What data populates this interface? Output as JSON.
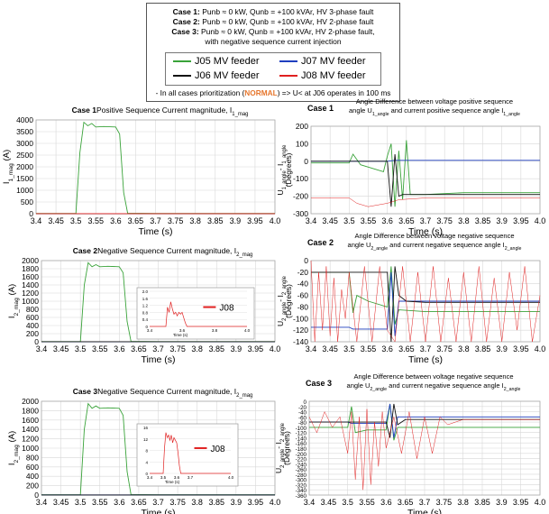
{
  "legend": {
    "cases": [
      {
        "label": "Case 1:",
        "text": " Punb ≈ 0 kW, Qunb = +100 kVAr, HV 3-phase fault"
      },
      {
        "label": "Case 2:",
        "text": " Punb ≈ 0 kW, Qunb = +100 kVAr, HV 2-phase fault"
      },
      {
        "label": "Case 3:",
        "text": " Punb ≈ 0 kW, Qunb = +100 kVAr, HV 2-phase fault,"
      }
    ],
    "case3_cont": "with negative sequence current injection",
    "feeders": [
      {
        "name": "J05 MV feeder",
        "color": "#3aa33a"
      },
      {
        "name": "J07 MV feeder",
        "color": "#1f3fbf"
      },
      {
        "name": "J06 MV feeder",
        "color": "#111111"
      },
      {
        "name": "J08 MV feeder",
        "color": "#e02020"
      }
    ],
    "prio_pre": "- In all cases prioritization (",
    "prio_hl": "NORMAL",
    "prio_post": ") => U< at J06 operates in 100 ms"
  },
  "chart_data": [
    {
      "id": "c1l",
      "type": "line",
      "case_label": "Case 1",
      "title": "Positive Sequence Current magnitude, I",
      "title_sub": "1_mag",
      "ylabel": "I",
      "ylabel_sub": "1_mag",
      "ylabel_end": " (A)",
      "xlabel": "Time (s)",
      "xlim": [
        3.4,
        4.0
      ],
      "ylim": [
        0,
        4000
      ],
      "yticks": [
        "0",
        "500",
        "1000",
        "1500",
        "2000",
        "2500",
        "3000",
        "3500",
        "4000"
      ],
      "xticks": [
        "3.4",
        "3.45",
        "3.5",
        "3.55",
        "3.6",
        "3.65",
        "3.7",
        "3.75",
        "3.8",
        "3.85",
        "3.9",
        "3.95",
        "4.0"
      ],
      "series": [
        {
          "color": "#3aa33a",
          "x": [
            3.4,
            3.5,
            3.51,
            3.52,
            3.53,
            3.54,
            3.55,
            3.57,
            3.6,
            3.61,
            3.62,
            3.63,
            3.7,
            4.0
          ],
          "y": [
            10,
            10,
            2600,
            3900,
            3750,
            3850,
            3700,
            3720,
            3700,
            3400,
            900,
            20,
            10,
            10
          ]
        },
        {
          "color": "#1f3fbf",
          "x": [
            3.4,
            3.5,
            3.6,
            4.0
          ],
          "y": [
            5,
            5,
            5,
            5
          ]
        },
        {
          "color": "#111111",
          "x": [
            3.4,
            4.0
          ],
          "y": [
            3,
            3
          ]
        },
        {
          "color": "#e02020",
          "x": [
            3.4,
            4.0
          ],
          "y": [
            2,
            2
          ]
        }
      ]
    },
    {
      "id": "c1r",
      "type": "line",
      "case_label": "Case 1",
      "title_line1": "Angle Difference between voltage positive sequence",
      "title_line2a": "angle U",
      "title_line2a_sub": "1_angle",
      "title_line2b": " and current positive sequence angle I",
      "title_line2b_sub": "1_angle",
      "ylabel": "U",
      "ylabel_sub": "1_angle",
      "ylabel_mid": "- I",
      "ylabel_sub2": "1_angle",
      "ylabel_unit": "(Degrees)",
      "xlabel": "Time (s)",
      "xlim": [
        3.4,
        4.0
      ],
      "ylim": [
        -300,
        200
      ],
      "yticks": [
        "-300",
        "-200",
        "-100",
        "0",
        "100",
        "200"
      ],
      "xticks": [
        "3.4",
        "3.45",
        "3.5",
        "3.55",
        "3.6",
        "3.65",
        "3.7",
        "3.75",
        "3.8",
        "3.85",
        "3.9",
        "3.95",
        "4.0"
      ],
      "series": [
        {
          "color": "#3aa33a",
          "x": [
            3.4,
            3.5,
            3.51,
            3.53,
            3.56,
            3.59,
            3.6,
            3.61,
            3.62,
            3.63,
            3.64,
            3.65,
            3.66,
            3.7,
            3.8,
            4.0
          ],
          "y": [
            -10,
            -10,
            40,
            -20,
            -40,
            -60,
            30,
            100,
            -260,
            60,
            -220,
            120,
            -190,
            -190,
            -180,
            -180
          ]
        },
        {
          "color": "#1f3fbf",
          "x": [
            3.4,
            3.6,
            3.62,
            4.0
          ],
          "y": [
            0,
            0,
            5,
            5
          ]
        },
        {
          "color": "#111111",
          "x": [
            3.4,
            3.6,
            3.61,
            3.62,
            3.63,
            3.64,
            3.65,
            4.0
          ],
          "y": [
            0,
            0,
            -260,
            40,
            -200,
            -190,
            -190,
            -190
          ]
        },
        {
          "color": "#e02020",
          "x": [
            3.4,
            3.5,
            3.52,
            3.55,
            3.6,
            3.63,
            3.7,
            4.0
          ],
          "y": [
            -210,
            -210,
            -240,
            -260,
            -240,
            -220,
            -210,
            -210
          ]
        }
      ]
    },
    {
      "id": "c2l",
      "type": "line",
      "case_label": "Case 2",
      "title": "Negative Sequence Current magnitude, I",
      "title_sub": "2_mag",
      "ylabel": "I",
      "ylabel_sub": "2_mag",
      "ylabel_end": " (A)",
      "xlabel": "Time (s)",
      "xlim": [
        3.4,
        4.0
      ],
      "ylim": [
        0,
        2000
      ],
      "yticks": [
        "0",
        "200",
        "400",
        "600",
        "800",
        "1000",
        "1200",
        "1400",
        "1600",
        "1800",
        "2000"
      ],
      "xticks": [
        "3.4",
        "3.45",
        "3.5",
        "3.55",
        "3.6",
        "3.65",
        "3.7",
        "3.75",
        "3.8",
        "3.85",
        "3.9",
        "3.95",
        "4.0"
      ],
      "series": [
        {
          "color": "#3aa33a",
          "x": [
            3.4,
            3.5,
            3.51,
            3.52,
            3.53,
            3.54,
            3.55,
            3.57,
            3.6,
            3.61,
            3.62,
            3.63,
            3.7,
            4.0
          ],
          "y": [
            5,
            5,
            1400,
            1950,
            1850,
            1900,
            1850,
            1860,
            1850,
            1700,
            500,
            10,
            5,
            5
          ]
        },
        {
          "color": "#1f3fbf",
          "x": [
            3.4,
            4.0
          ],
          "y": [
            3,
            3
          ]
        },
        {
          "color": "#111111",
          "x": [
            3.4,
            4.0
          ],
          "y": [
            2,
            2
          ]
        }
      ],
      "inset": {
        "label": "J08",
        "color": "#e02020",
        "xlim": [
          3.4,
          4.0
        ],
        "ylim": [
          0,
          2.0
        ],
        "yticks": [
          "0",
          "0.4",
          "0.8",
          "1.2",
          "1.6",
          "2.0"
        ],
        "xticks": [
          "3.4",
          "3.6",
          "3.8",
          "4.0"
        ],
        "xlabel": "Time (s)",
        "x": [
          3.4,
          3.5,
          3.51,
          3.52,
          3.53,
          3.54,
          3.55,
          3.56,
          3.57,
          3.58,
          3.59,
          3.6,
          3.61,
          3.62,
          3.63,
          4.0
        ],
        "y": [
          0,
          0,
          1.1,
          0.8,
          1.4,
          1.0,
          0.7,
          0.8,
          0.6,
          0.8,
          0.7,
          0.8,
          0.5,
          0.2,
          0,
          0
        ]
      }
    },
    {
      "id": "c2r",
      "type": "line",
      "case_label": "Case 2",
      "title_line1": "Angle Difference between voltage negative sequence",
      "title_line2a": "angle U",
      "title_line2a_sub": "2_angle",
      "title_line2b": " and current negative sequence angle I",
      "title_line2b_sub": "2_angle",
      "ylabel": "U",
      "ylabel_sub": "2_angle",
      "ylabel_mid": "- I",
      "ylabel_sub2": "2_angle",
      "ylabel_unit": "(Degrees)",
      "xlabel": "Time (s)",
      "xlim": [
        3.4,
        4.0
      ],
      "ylim": [
        -140,
        0
      ],
      "yticks": [
        "-140",
        "-120",
        "-100",
        "-80",
        "-60",
        "-40",
        "-20",
        "0"
      ],
      "xticks": [
        "3.4",
        "3.45",
        "3.5",
        "3.55",
        "3.6",
        "3.65",
        "3.7",
        "3.75",
        "3.8",
        "3.85",
        "3.9",
        "3.95",
        "4.0"
      ],
      "series": [
        {
          "color": "#3aa33a",
          "x": [
            3.4,
            3.5,
            3.51,
            3.52,
            3.55,
            3.6,
            3.61,
            3.62,
            3.63,
            3.7,
            4.0
          ],
          "y": [
            -20,
            -20,
            -90,
            -60,
            -70,
            -80,
            -10,
            -110,
            -85,
            -88,
            -88
          ]
        },
        {
          "color": "#1f3fbf",
          "x": [
            3.4,
            3.5,
            3.51,
            3.6,
            3.61,
            3.62,
            3.63,
            4.0
          ],
          "y": [
            -115,
            -115,
            -118,
            -118,
            -20,
            -130,
            -70,
            -70
          ]
        },
        {
          "color": "#111111",
          "x": [
            3.4,
            3.5,
            3.51,
            3.6,
            3.61,
            3.62,
            3.63,
            3.65,
            3.7,
            4.0
          ],
          "y": [
            -20,
            -20,
            -20,
            -20,
            -140,
            -10,
            -60,
            -70,
            -72,
            -72
          ]
        },
        {
          "color": "#e02020",
          "x": [
            3.4,
            3.41,
            3.42,
            3.43,
            3.44,
            3.45,
            3.46,
            3.47,
            3.48,
            3.49,
            3.5,
            3.52,
            3.54,
            3.56,
            3.58,
            3.6,
            3.62,
            3.64,
            3.66,
            3.68,
            3.7,
            3.72,
            3.74,
            3.76,
            3.78,
            3.8,
            3.82,
            3.84,
            3.86,
            3.88,
            3.9,
            3.92,
            3.94,
            3.96,
            3.98,
            4.0
          ],
          "y": [
            0,
            -140,
            -20,
            -120,
            -10,
            -130,
            -30,
            -140,
            -50,
            -100,
            -20,
            -140,
            -10,
            -140,
            -10,
            -120,
            -140,
            -10,
            -140,
            -20,
            -140,
            -10,
            -140,
            -30,
            -140,
            -20,
            -140,
            -10,
            -140,
            -30,
            -140,
            -20,
            -120,
            -10,
            -140,
            -60
          ]
        }
      ]
    },
    {
      "id": "c3l",
      "type": "line",
      "case_label": "Case 3",
      "title": "Negative Sequence Current magnitude, I",
      "title_sub": "2_mag",
      "ylabel": "I",
      "ylabel_sub": "2_mag",
      "ylabel_end": " (A)",
      "xlabel": "Time (s)",
      "xlim": [
        3.4,
        4.0
      ],
      "ylim": [
        0,
        2000
      ],
      "yticks": [
        "0",
        "200",
        "400",
        "600",
        "800",
        "1000",
        "1200",
        "1400",
        "1600",
        "1800",
        "2000"
      ],
      "xticks": [
        "3.4",
        "3.45",
        "3.5",
        "3.55",
        "3.6",
        "3.65",
        "3.7",
        "3.75",
        "3.8",
        "3.85",
        "3.9",
        "3.95",
        "4.0"
      ],
      "series": [
        {
          "color": "#3aa33a",
          "x": [
            3.4,
            3.5,
            3.51,
            3.52,
            3.53,
            3.54,
            3.55,
            3.57,
            3.6,
            3.61,
            3.62,
            3.63,
            3.7,
            4.0
          ],
          "y": [
            5,
            5,
            1400,
            1950,
            1850,
            1900,
            1850,
            1860,
            1850,
            1700,
            500,
            10,
            5,
            5
          ]
        },
        {
          "color": "#1f3fbf",
          "x": [
            3.4,
            4.0
          ],
          "y": [
            3,
            3
          ]
        },
        {
          "color": "#111111",
          "x": [
            3.4,
            4.0
          ],
          "y": [
            2,
            2
          ]
        }
      ],
      "inset": {
        "label": "J08",
        "color": "#e02020",
        "xlim": [
          3.4,
          4.0
        ],
        "ylim": [
          0,
          18
        ],
        "yticks": [
          "0",
          "4",
          "8",
          "12",
          "16"
        ],
        "xticks": [
          "3.4",
          "3.5",
          "3.6",
          "3.7",
          "4.0"
        ],
        "xlabel": "Time (s)",
        "x": [
          3.4,
          3.5,
          3.51,
          3.52,
          3.53,
          3.54,
          3.55,
          3.56,
          3.57,
          3.58,
          3.59,
          3.6,
          3.61,
          3.62,
          3.63,
          4.0
        ],
        "y": [
          0,
          0,
          10,
          16,
          14,
          15,
          13,
          15,
          12,
          14,
          13,
          12,
          8,
          3,
          0,
          0
        ]
      }
    },
    {
      "id": "c3r",
      "type": "line",
      "case_label": "Case 3",
      "title_line1": "Angle Difference between voltage negative sequence",
      "title_line2a": "angle U",
      "title_line2a_sub": "2_angle",
      "title_line2b": " and current negative sequence angle I",
      "title_line2b_sub": "2_angle",
      "ylabel": "U",
      "ylabel_sub": "2_angle",
      "ylabel_mid": "- I",
      "ylabel_sub2": "2_angle",
      "ylabel_unit": "(Degrees)",
      "xlabel": "Time (s)",
      "xlim": [
        3.4,
        4.0
      ],
      "ylim": [
        -360,
        0
      ],
      "yticks": [
        "-360",
        "-340",
        "-320",
        "-300",
        "-280",
        "-260",
        "-240",
        "-220",
        "-200",
        "-180",
        "-160",
        "-140",
        "-120",
        "-100",
        "-80",
        "-60",
        "-40",
        "-20",
        "0"
      ],
      "xticks": [
        "3.4",
        "3.45",
        "3.5",
        "3.55",
        "3.6",
        "3.65",
        "3.7",
        "3.75",
        "3.8",
        "3.85",
        "3.9",
        "3.95",
        "4.0"
      ],
      "series": [
        {
          "color": "#3aa33a",
          "x": [
            3.4,
            3.5,
            3.51,
            3.52,
            3.55,
            3.6,
            3.61,
            3.62,
            3.63,
            3.7,
            4.0
          ],
          "y": [
            -100,
            -100,
            -20,
            -120,
            -110,
            -110,
            -10,
            -150,
            -100,
            -100,
            -100
          ]
        },
        {
          "color": "#1f3fbf",
          "x": [
            3.4,
            3.5,
            3.51,
            3.6,
            3.61,
            3.62,
            3.63,
            4.0
          ],
          "y": [
            -80,
            -80,
            -85,
            -85,
            -10,
            -140,
            -60,
            -60
          ]
        },
        {
          "color": "#111111",
          "x": [
            3.4,
            3.5,
            3.6,
            3.61,
            3.62,
            3.63,
            3.65,
            3.7,
            4.0
          ],
          "y": [
            -80,
            -80,
            -80,
            -140,
            -10,
            -90,
            -70,
            -70,
            -70
          ]
        },
        {
          "color": "#e02020",
          "x": [
            3.4,
            3.42,
            3.44,
            3.46,
            3.48,
            3.5,
            3.51,
            3.52,
            3.53,
            3.54,
            3.55,
            3.56,
            3.57,
            3.58,
            3.59,
            3.6,
            3.62,
            3.64,
            3.66,
            3.68,
            3.7,
            3.72,
            3.74,
            3.76,
            3.8,
            4.0
          ],
          "y": [
            -60,
            -120,
            -40,
            -100,
            -60,
            -200,
            -40,
            -300,
            -60,
            -340,
            -30,
            -320,
            -80,
            -250,
            -40,
            -180,
            -60,
            -200,
            -40,
            -220,
            -60,
            -200,
            -60,
            -90,
            -70,
            -70
          ]
        }
      ]
    }
  ]
}
